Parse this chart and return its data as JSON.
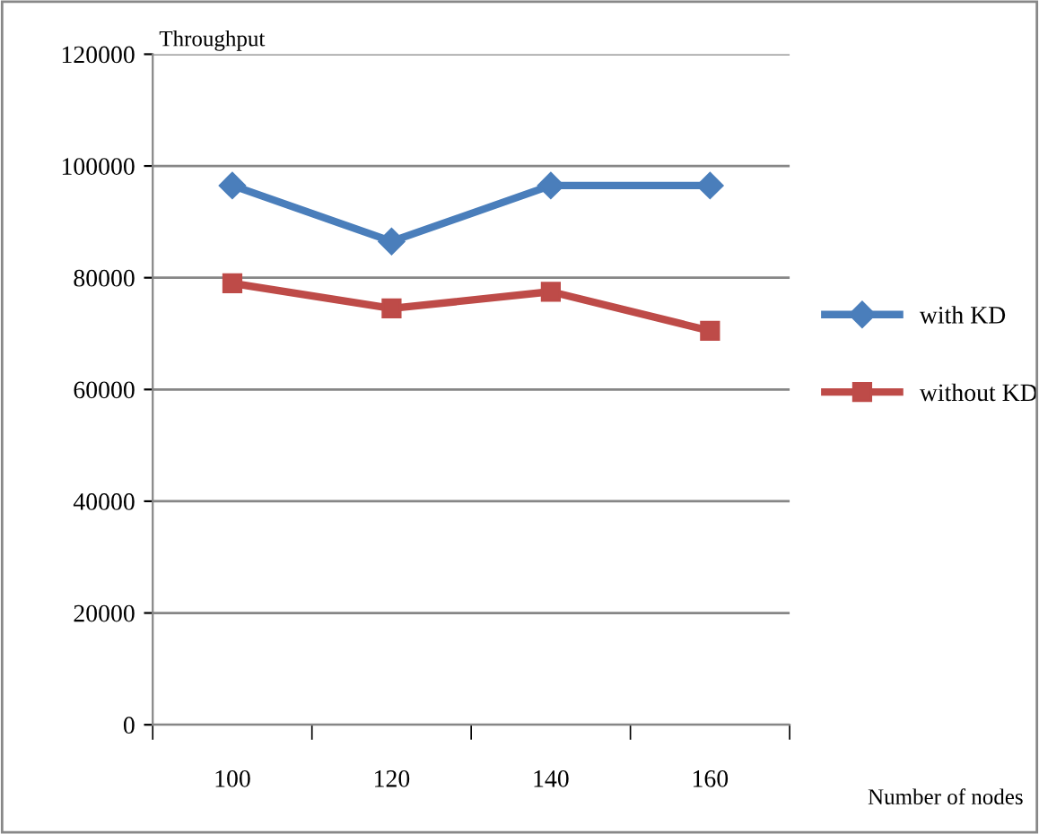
{
  "chart_data": {
    "type": "line",
    "ylabel": "Throughput",
    "xlabel": "Number of nodes",
    "categories": [
      "100",
      "120",
      "140",
      "160"
    ],
    "series": [
      {
        "name": "with KD",
        "color": "#4a7ebb",
        "marker": "diamond",
        "values": [
          96500,
          86500,
          96500,
          96500
        ]
      },
      {
        "name": "without KD",
        "color": "#be4b48",
        "marker": "square",
        "values": [
          79000,
          74500,
          77500,
          70500
        ]
      }
    ],
    "ylim": [
      0,
      120000
    ],
    "yticks": [
      0,
      20000,
      40000,
      60000,
      80000,
      100000,
      120000
    ],
    "grid": "y",
    "legend": "right",
    "line_style": "solid"
  }
}
